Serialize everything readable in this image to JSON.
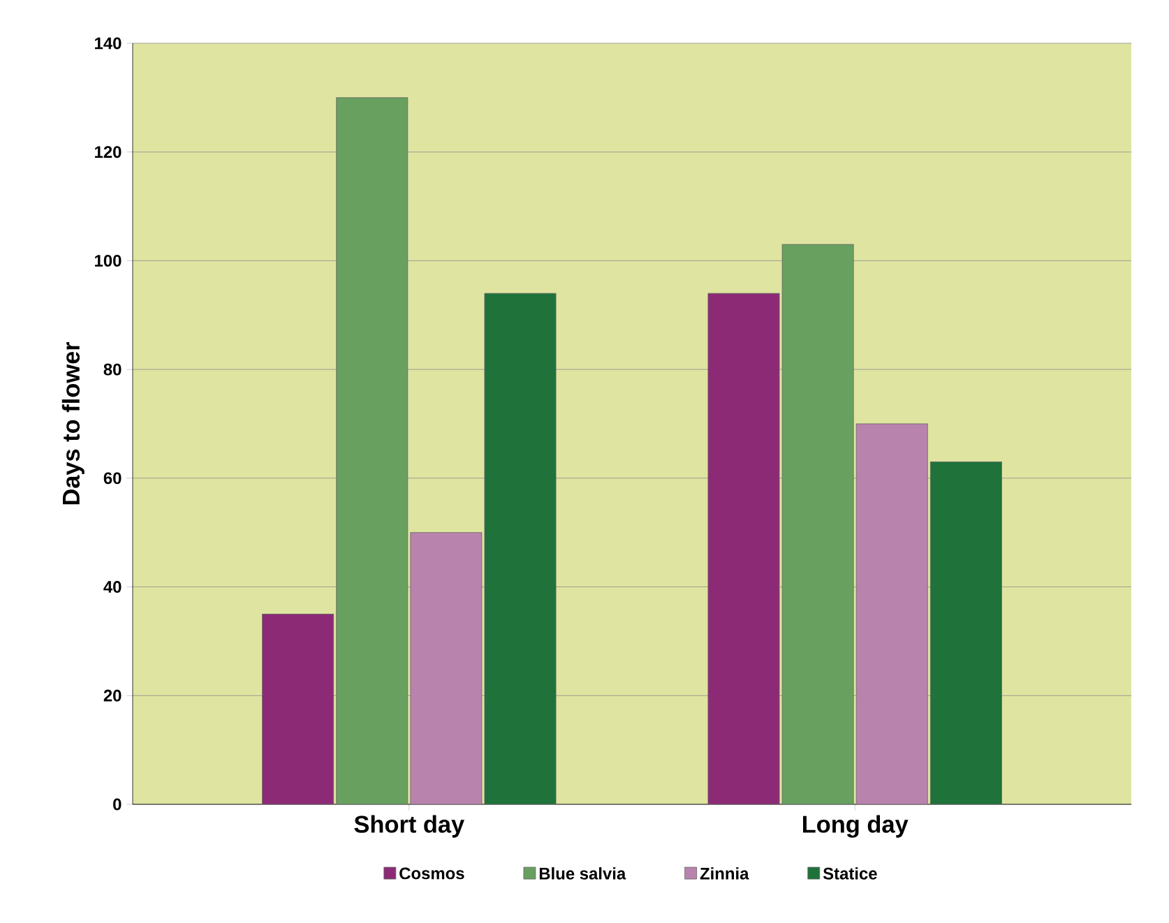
{
  "chart_data": {
    "type": "bar",
    "ylabel": "Days to flower",
    "categories": [
      "Short day",
      "Long day"
    ],
    "series": [
      {
        "name": "Cosmos",
        "color": "#8c2a76",
        "values": [
          35,
          94
        ]
      },
      {
        "name": "Blue salvia",
        "color": "#68a060",
        "values": [
          130,
          103
        ]
      },
      {
        "name": "Zinnia",
        "color": "#b883ad",
        "values": [
          50,
          70
        ]
      },
      {
        "name": "Statice",
        "color": "#1e723a",
        "values": [
          94,
          63
        ]
      }
    ],
    "ylim": [
      0,
      140
    ],
    "yticks": [
      0,
      20,
      40,
      60,
      80,
      100,
      120,
      140
    ],
    "grid": "y",
    "legend": "bottom"
  }
}
